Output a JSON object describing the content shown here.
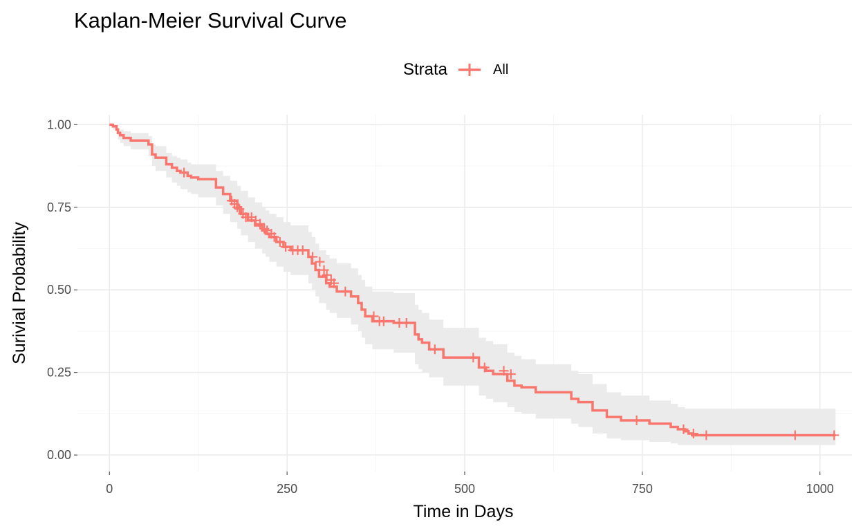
{
  "chart_data": {
    "type": "line",
    "title": "Kaplan-Meier Survival Curve",
    "xlabel": "Time in Days",
    "ylabel": "Surivial Probability",
    "xlim": [
      -45,
      1045
    ],
    "ylim": [
      -0.05,
      1.03
    ],
    "x_ticks": [
      0,
      250,
      500,
      750,
      1000
    ],
    "x_tick_labels": [
      "0",
      "250",
      "500",
      "750",
      "1000"
    ],
    "y_ticks": [
      0,
      0.25,
      0.5,
      0.75,
      1
    ],
    "y_tick_labels": [
      "0.00",
      "0.25",
      "0.50",
      "0.75",
      "1.00"
    ],
    "x_minor": [
      125,
      375,
      625,
      875
    ],
    "y_minor": [
      0.125,
      0.375,
      0.625,
      0.875
    ],
    "grid": true,
    "legend": {
      "title": "Strata",
      "position": "top",
      "entries": [
        "All"
      ]
    },
    "colors": {
      "line": "#F8766D",
      "ribbon": "#ebebeb",
      "grid_major": "#ebebeb",
      "grid_minor": "#f5f5f5"
    },
    "series": [
      {
        "name": "All",
        "x": [
          0,
          5,
          10,
          12,
          15,
          20,
          30,
          55,
          60,
          65,
          80,
          88,
          95,
          100,
          110,
          115,
          125,
          150,
          160,
          170,
          180,
          185,
          195,
          205,
          215,
          220,
          225,
          235,
          245,
          255,
          280,
          285,
          290,
          295,
          305,
          310,
          320,
          340,
          350,
          355,
          360,
          370,
          400,
          430,
          435,
          440,
          450,
          470,
          520,
          530,
          540,
          560,
          570,
          580,
          600,
          650,
          660,
          680,
          700,
          720,
          760,
          790,
          800,
          810,
          815,
          820,
          1022
        ],
        "y": [
          1.0,
          0.995,
          0.985,
          0.975,
          0.968,
          0.96,
          0.952,
          0.94,
          0.91,
          0.9,
          0.88,
          0.87,
          0.86,
          0.855,
          0.845,
          0.84,
          0.835,
          0.81,
          0.79,
          0.77,
          0.75,
          0.73,
          0.71,
          0.695,
          0.68,
          0.67,
          0.66,
          0.645,
          0.63,
          0.62,
          0.6,
          0.58,
          0.56,
          0.54,
          0.52,
          0.51,
          0.495,
          0.48,
          0.46,
          0.44,
          0.42,
          0.405,
          0.4,
          0.365,
          0.35,
          0.34,
          0.32,
          0.295,
          0.265,
          0.255,
          0.245,
          0.225,
          0.21,
          0.205,
          0.19,
          0.17,
          0.16,
          0.135,
          0.115,
          0.105,
          0.095,
          0.085,
          0.078,
          0.072,
          0.065,
          0.06,
          0.06
        ],
        "lower": [
          1.0,
          0.985,
          0.97,
          0.955,
          0.945,
          0.935,
          0.925,
          0.905,
          0.875,
          0.86,
          0.84,
          0.825,
          0.815,
          0.805,
          0.795,
          0.79,
          0.78,
          0.755,
          0.73,
          0.705,
          0.685,
          0.665,
          0.645,
          0.625,
          0.61,
          0.6,
          0.585,
          0.57,
          0.555,
          0.545,
          0.52,
          0.5,
          0.48,
          0.46,
          0.44,
          0.43,
          0.415,
          0.395,
          0.375,
          0.355,
          0.335,
          0.32,
          0.31,
          0.275,
          0.26,
          0.25,
          0.235,
          0.21,
          0.18,
          0.17,
          0.16,
          0.145,
          0.13,
          0.125,
          0.11,
          0.095,
          0.085,
          0.065,
          0.05,
          0.045,
          0.04,
          0.035,
          0.03,
          0.03,
          0.03,
          0.03,
          0.03
        ],
        "upper": [
          1.0,
          1.0,
          0.995,
          0.99,
          0.985,
          0.98,
          0.975,
          0.965,
          0.94,
          0.935,
          0.915,
          0.905,
          0.9,
          0.895,
          0.885,
          0.88,
          0.88,
          0.86,
          0.845,
          0.83,
          0.815,
          0.8,
          0.78,
          0.765,
          0.75,
          0.74,
          0.73,
          0.72,
          0.705,
          0.695,
          0.675,
          0.66,
          0.64,
          0.62,
          0.605,
          0.595,
          0.58,
          0.565,
          0.545,
          0.53,
          0.51,
          0.495,
          0.49,
          0.455,
          0.44,
          0.43,
          0.41,
          0.385,
          0.355,
          0.345,
          0.335,
          0.31,
          0.3,
          0.29,
          0.275,
          0.255,
          0.245,
          0.215,
          0.19,
          0.18,
          0.165,
          0.155,
          0.145,
          0.14,
          0.14,
          0.14,
          0.14
        ],
        "censored": [
          [
            105,
            0.855
          ],
          [
            172,
            0.77
          ],
          [
            176,
            0.76
          ],
          [
            180,
            0.75
          ],
          [
            183,
            0.745
          ],
          [
            188,
            0.73
          ],
          [
            192,
            0.72
          ],
          [
            200,
            0.72
          ],
          [
            206,
            0.71
          ],
          [
            212,
            0.7
          ],
          [
            218,
            0.685
          ],
          [
            222,
            0.68
          ],
          [
            228,
            0.67
          ],
          [
            232,
            0.66
          ],
          [
            240,
            0.645
          ],
          [
            248,
            0.63
          ],
          [
            258,
            0.62
          ],
          [
            265,
            0.62
          ],
          [
            272,
            0.62
          ],
          [
            286,
            0.6
          ],
          [
            296,
            0.585
          ],
          [
            302,
            0.56
          ],
          [
            306,
            0.545
          ],
          [
            312,
            0.53
          ],
          [
            316,
            0.52
          ],
          [
            332,
            0.495
          ],
          [
            372,
            0.42
          ],
          [
            380,
            0.405
          ],
          [
            386,
            0.405
          ],
          [
            408,
            0.4
          ],
          [
            418,
            0.4
          ],
          [
            458,
            0.32
          ],
          [
            512,
            0.295
          ],
          [
            528,
            0.265
          ],
          [
            555,
            0.255
          ],
          [
            565,
            0.245
          ],
          [
            742,
            0.105
          ],
          [
            808,
            0.078
          ],
          [
            822,
            0.065
          ],
          [
            840,
            0.06
          ],
          [
            965,
            0.06
          ],
          [
            1020,
            0.06
          ]
        ]
      }
    ]
  }
}
